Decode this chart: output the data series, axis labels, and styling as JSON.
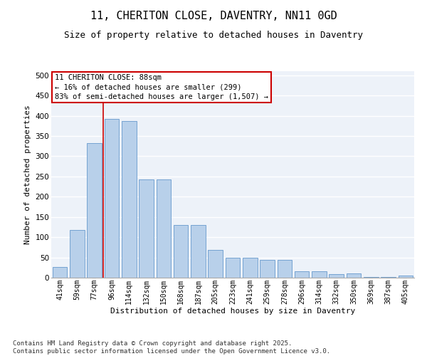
{
  "title": "11, CHERITON CLOSE, DAVENTRY, NN11 0GD",
  "subtitle": "Size of property relative to detached houses in Daventry",
  "xlabel": "Distribution of detached houses by size in Daventry",
  "ylabel": "Number of detached properties",
  "categories": [
    "41sqm",
    "59sqm",
    "77sqm",
    "96sqm",
    "114sqm",
    "132sqm",
    "150sqm",
    "168sqm",
    "187sqm",
    "205sqm",
    "223sqm",
    "241sqm",
    "259sqm",
    "278sqm",
    "296sqm",
    "314sqm",
    "332sqm",
    "350sqm",
    "369sqm",
    "387sqm",
    "405sqm"
  ],
  "values": [
    27,
    118,
    333,
    393,
    387,
    243,
    242,
    131,
    131,
    69,
    50,
    50,
    44,
    44,
    15,
    15,
    8,
    11,
    1,
    1,
    5
  ],
  "bar_color": "#b8d0ea",
  "bar_edge_color": "#6699cc",
  "vline_color": "#cc0000",
  "vline_index": 2.5,
  "annotation_line1": "11 CHERITON CLOSE: 88sqm",
  "annotation_line2": "← 16% of detached houses are smaller (299)",
  "annotation_line3": "83% of semi-detached houses are larger (1,507) →",
  "box_edge_color": "#cc0000",
  "ylim": [
    0,
    510
  ],
  "yticks": [
    0,
    50,
    100,
    150,
    200,
    250,
    300,
    350,
    400,
    450,
    500
  ],
  "footer_line1": "Contains HM Land Registry data © Crown copyright and database right 2025.",
  "footer_line2": "Contains public sector information licensed under the Open Government Licence v3.0.",
  "bg_color": "#edf2f9",
  "grid_color": "#ffffff",
  "title_fontsize": 11,
  "subtitle_fontsize": 9,
  "axis_label_fontsize": 8,
  "tick_fontsize": 7,
  "annotation_fontsize": 7.5,
  "footer_fontsize": 6.5
}
